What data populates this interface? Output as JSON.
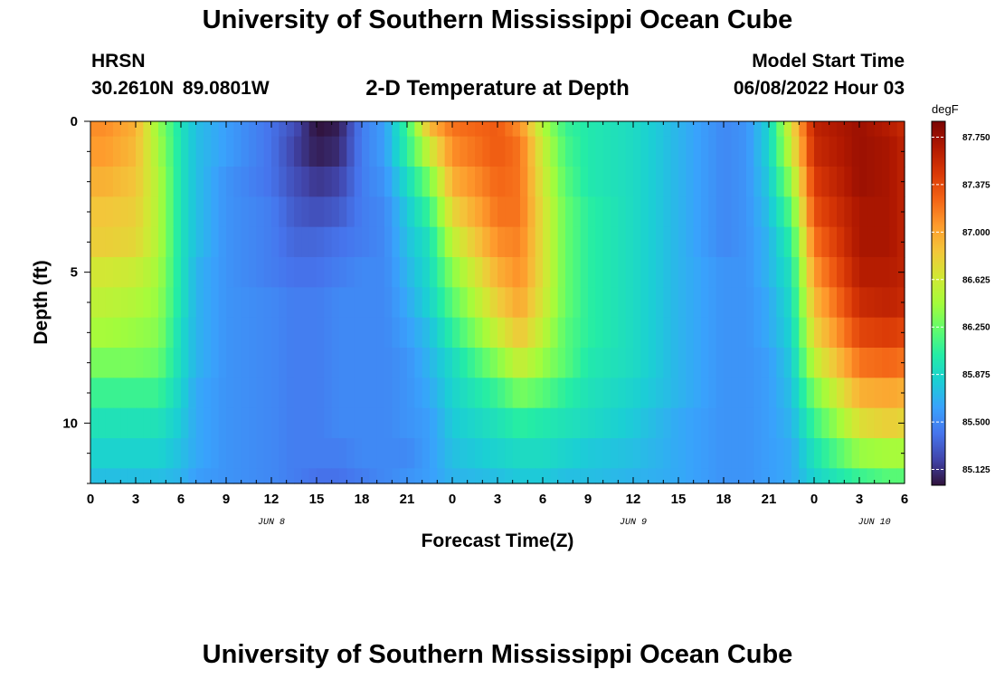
{
  "header": {
    "title": "University of Southern Mississippi Ocean Cube",
    "station_name": "HRSN",
    "station_coords": "30.2610N  89.0801W",
    "chart_title": "2-D Temperature at Depth",
    "start_label": "Model Start Time",
    "start_value": "06/08/2022 Hour 03"
  },
  "footer": {
    "title": "University of Southern Mississippi Ocean Cube"
  },
  "chart_data": {
    "type": "heatmap",
    "title": "2-D Temperature at Depth",
    "xlabel": "Forecast Time(Z)",
    "ylabel": "Depth (ft)",
    "xlim": [
      0,
      54
    ],
    "ylim": [
      12,
      0
    ],
    "x_ticks": [
      {
        "hours": 0,
        "label": "0"
      },
      {
        "hours": 3,
        "label": "3"
      },
      {
        "hours": 6,
        "label": "6"
      },
      {
        "hours": 9,
        "label": "9"
      },
      {
        "hours": 12,
        "label": "12"
      },
      {
        "hours": 15,
        "label": "15"
      },
      {
        "hours": 18,
        "label": "18"
      },
      {
        "hours": 21,
        "label": "21"
      },
      {
        "hours": 24,
        "label": "0"
      },
      {
        "hours": 27,
        "label": "3"
      },
      {
        "hours": 30,
        "label": "6"
      },
      {
        "hours": 33,
        "label": "9"
      },
      {
        "hours": 36,
        "label": "12"
      },
      {
        "hours": 39,
        "label": "15"
      },
      {
        "hours": 42,
        "label": "18"
      },
      {
        "hours": 45,
        "label": "21"
      },
      {
        "hours": 48,
        "label": "0"
      },
      {
        "hours": 51,
        "label": "3"
      },
      {
        "hours": 54,
        "label": "6"
      }
    ],
    "day_labels": [
      {
        "hours": 12,
        "label": "JUN 8"
      },
      {
        "hours": 36,
        "label": "JUN 9"
      },
      {
        "hours": 52,
        "label": "JUN 10"
      }
    ],
    "y_ticks": [
      0,
      5,
      10
    ],
    "colorbar": {
      "unit": "degF",
      "min": 85.0,
      "max": 87.875,
      "labels": [
        "87.750",
        "87.375",
        "87.000",
        "86.625",
        "86.250",
        "85.875",
        "85.500",
        "85.125"
      ],
      "stops": [
        "#30123b",
        "#4145ab",
        "#4675ed",
        "#39a2fc",
        "#1bcfd4",
        "#24eca6",
        "#61fc6c",
        "#a4fc3b",
        "#d1e834",
        "#f3c63a",
        "#fe9b2d",
        "#f36315",
        "#d93806",
        "#b11901",
        "#7a0403"
      ]
    },
    "depth_bands": [
      0,
      0.5,
      1.5,
      2.5,
      3.5,
      4.5,
      5.5,
      6.5,
      7.5,
      8.5,
      9.5,
      10.5,
      11.5,
      12
    ],
    "control_hours": [
      0,
      1,
      3,
      4.5,
      6,
      7,
      9,
      12,
      13.5,
      15,
      16.5,
      18,
      19.5,
      21,
      22.5,
      24,
      27,
      28.5,
      30,
      31.5,
      33,
      36,
      39,
      42,
      43.5,
      45,
      46.5,
      48,
      51,
      53,
      54
    ],
    "temperature_rows": [
      [
        87.1,
        87.1,
        86.95,
        86.4,
        85.95,
        85.75,
        85.6,
        85.4,
        85.25,
        85.0,
        85.05,
        85.45,
        85.6,
        86.1,
        86.9,
        87.2,
        87.3,
        87.1,
        86.5,
        86.1,
        86.0,
        85.9,
        85.7,
        85.5,
        85.55,
        85.85,
        86.7,
        87.6,
        87.75,
        87.65,
        87.55
      ],
      [
        87.05,
        87.05,
        86.9,
        86.45,
        85.95,
        85.75,
        85.6,
        85.4,
        85.2,
        85.05,
        85.1,
        85.45,
        85.6,
        86.05,
        86.6,
        87.1,
        87.3,
        87.2,
        86.6,
        86.15,
        86.0,
        85.9,
        85.7,
        85.5,
        85.55,
        85.85,
        86.6,
        87.55,
        87.75,
        87.7,
        87.6
      ],
      [
        86.95,
        86.95,
        86.85,
        86.5,
        85.95,
        85.75,
        85.55,
        85.4,
        85.25,
        85.15,
        85.2,
        85.45,
        85.55,
        85.9,
        86.3,
        86.95,
        87.25,
        87.2,
        86.65,
        86.2,
        86.0,
        85.9,
        85.7,
        85.5,
        85.55,
        85.8,
        86.4,
        87.45,
        87.75,
        87.7,
        87.6
      ],
      [
        86.85,
        86.85,
        86.8,
        86.5,
        85.95,
        85.75,
        85.55,
        85.45,
        85.3,
        85.25,
        85.3,
        85.45,
        85.5,
        85.8,
        86.1,
        86.75,
        87.2,
        87.2,
        86.7,
        86.25,
        86.05,
        85.9,
        85.7,
        85.5,
        85.55,
        85.75,
        86.2,
        87.35,
        87.7,
        87.7,
        87.6
      ],
      [
        86.8,
        86.8,
        86.75,
        86.5,
        85.95,
        85.75,
        85.55,
        85.45,
        85.35,
        85.35,
        85.4,
        85.45,
        85.5,
        85.75,
        85.95,
        86.55,
        87.1,
        87.15,
        86.7,
        86.25,
        86.05,
        85.9,
        85.7,
        85.5,
        85.55,
        85.7,
        86.05,
        87.2,
        87.7,
        87.7,
        87.6
      ],
      [
        86.65,
        86.65,
        86.6,
        86.45,
        85.95,
        85.7,
        85.55,
        85.45,
        85.4,
        85.4,
        85.45,
        85.5,
        85.5,
        85.7,
        85.9,
        86.35,
        86.95,
        87.1,
        86.7,
        86.25,
        86.05,
        85.9,
        85.7,
        85.55,
        85.55,
        85.7,
        85.95,
        87.05,
        87.65,
        87.65,
        87.6
      ],
      [
        86.55,
        86.55,
        86.5,
        86.4,
        85.95,
        85.7,
        85.55,
        85.5,
        85.45,
        85.45,
        85.5,
        85.5,
        85.5,
        85.65,
        85.85,
        86.2,
        86.8,
        87.0,
        86.65,
        86.25,
        86.05,
        85.9,
        85.7,
        85.55,
        85.55,
        85.65,
        85.9,
        86.9,
        87.55,
        87.6,
        87.55
      ],
      [
        86.45,
        86.45,
        86.4,
        86.35,
        85.9,
        85.7,
        85.55,
        85.5,
        85.45,
        85.45,
        85.5,
        85.5,
        85.5,
        85.6,
        85.75,
        86.05,
        86.6,
        86.85,
        86.55,
        86.2,
        86.05,
        85.9,
        85.7,
        85.55,
        85.55,
        85.65,
        85.85,
        86.75,
        87.4,
        87.45,
        87.4
      ],
      [
        86.3,
        86.3,
        86.3,
        86.25,
        85.9,
        85.7,
        85.55,
        85.5,
        85.45,
        85.45,
        85.5,
        85.5,
        85.5,
        85.55,
        85.7,
        85.9,
        86.35,
        86.6,
        86.4,
        86.2,
        86.0,
        85.9,
        85.7,
        85.55,
        85.55,
        85.6,
        85.8,
        86.55,
        87.2,
        87.25,
        87.2
      ],
      [
        86.1,
        86.1,
        86.1,
        86.1,
        85.85,
        85.65,
        85.55,
        85.5,
        85.45,
        85.45,
        85.5,
        85.5,
        85.5,
        85.55,
        85.65,
        85.85,
        86.1,
        86.3,
        86.2,
        86.05,
        85.95,
        85.85,
        85.7,
        85.55,
        85.55,
        85.6,
        85.75,
        86.3,
        86.95,
        87.0,
        86.95
      ],
      [
        85.95,
        85.95,
        85.95,
        85.95,
        85.8,
        85.65,
        85.55,
        85.5,
        85.45,
        85.45,
        85.5,
        85.5,
        85.5,
        85.55,
        85.6,
        85.8,
        85.95,
        86.05,
        86.0,
        85.95,
        85.9,
        85.8,
        85.65,
        85.55,
        85.55,
        85.6,
        85.7,
        86.1,
        86.7,
        86.8,
        86.75
      ],
      [
        85.85,
        85.85,
        85.85,
        85.85,
        85.75,
        85.65,
        85.55,
        85.5,
        85.45,
        85.45,
        85.45,
        85.5,
        85.5,
        85.5,
        85.6,
        85.75,
        85.85,
        85.9,
        85.9,
        85.85,
        85.8,
        85.75,
        85.65,
        85.55,
        85.55,
        85.6,
        85.65,
        85.95,
        86.4,
        86.45,
        86.45
      ],
      [
        85.75,
        85.75,
        85.75,
        85.75,
        85.7,
        85.6,
        85.55,
        85.5,
        85.45,
        85.4,
        85.4,
        85.45,
        85.5,
        85.55,
        85.6,
        85.7,
        85.75,
        85.8,
        85.8,
        85.75,
        85.75,
        85.7,
        85.65,
        85.55,
        85.55,
        85.6,
        85.65,
        85.85,
        86.1,
        86.2,
        86.2
      ]
    ]
  }
}
